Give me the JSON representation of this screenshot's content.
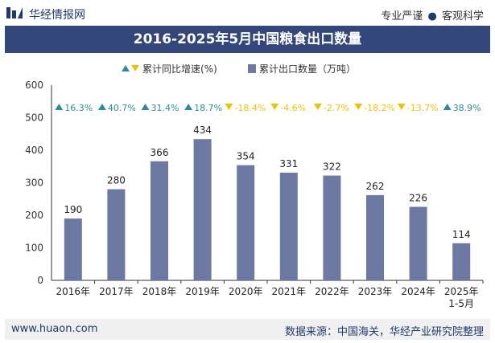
{
  "header": {
    "brand": "华经情报网",
    "tagline_left": "专业严谨",
    "tagline_sep": "●",
    "tagline_right": "客观科学"
  },
  "title": "2016-2025年5月中国粮食出口数量",
  "footer": {
    "url": "www.huaon.com",
    "source": "数据来源：中国海关，华经产业研究院整理"
  },
  "colors": {
    "bar": "#6b79a3",
    "up": "#2e8b9a",
    "down": "#f2c200",
    "axis": "#333333",
    "titlebar": "#33477a"
  },
  "chart_data": {
    "type": "bar",
    "categories": [
      "2016年",
      "2017年",
      "2018年",
      "2019年",
      "2020年",
      "2021年",
      "2022年",
      "2023年",
      "2024年",
      "2025年\n1-5月"
    ],
    "series": [
      {
        "name": "累计出口数量（万吨）",
        "type": "bar",
        "values": [
          190,
          280,
          366,
          434,
          354,
          331,
          322,
          262,
          226,
          114
        ]
      },
      {
        "name": "累计同比增速(%)",
        "type": "marker",
        "values": [
          16.3,
          40.7,
          31.4,
          18.7,
          -18.4,
          -4.6,
          -2.7,
          -18.2,
          -13.7,
          38.9
        ]
      }
    ],
    "growth_labels": [
      "16.3%",
      "40.7%",
      "31.4%",
      "18.7%",
      "-18.4%",
      "-4.6%",
      "-2.7%",
      "-18.2%",
      "-13.7%",
      "38.9%"
    ],
    "legend": [
      "累计同比增速(%)",
      "累计出口数量（万吨）"
    ],
    "legend_position": "top",
    "yticks": [
      0,
      100,
      200,
      300,
      400,
      500,
      600
    ],
    "ylim": [
      0,
      600
    ],
    "xlabel": "",
    "ylabel": ""
  }
}
